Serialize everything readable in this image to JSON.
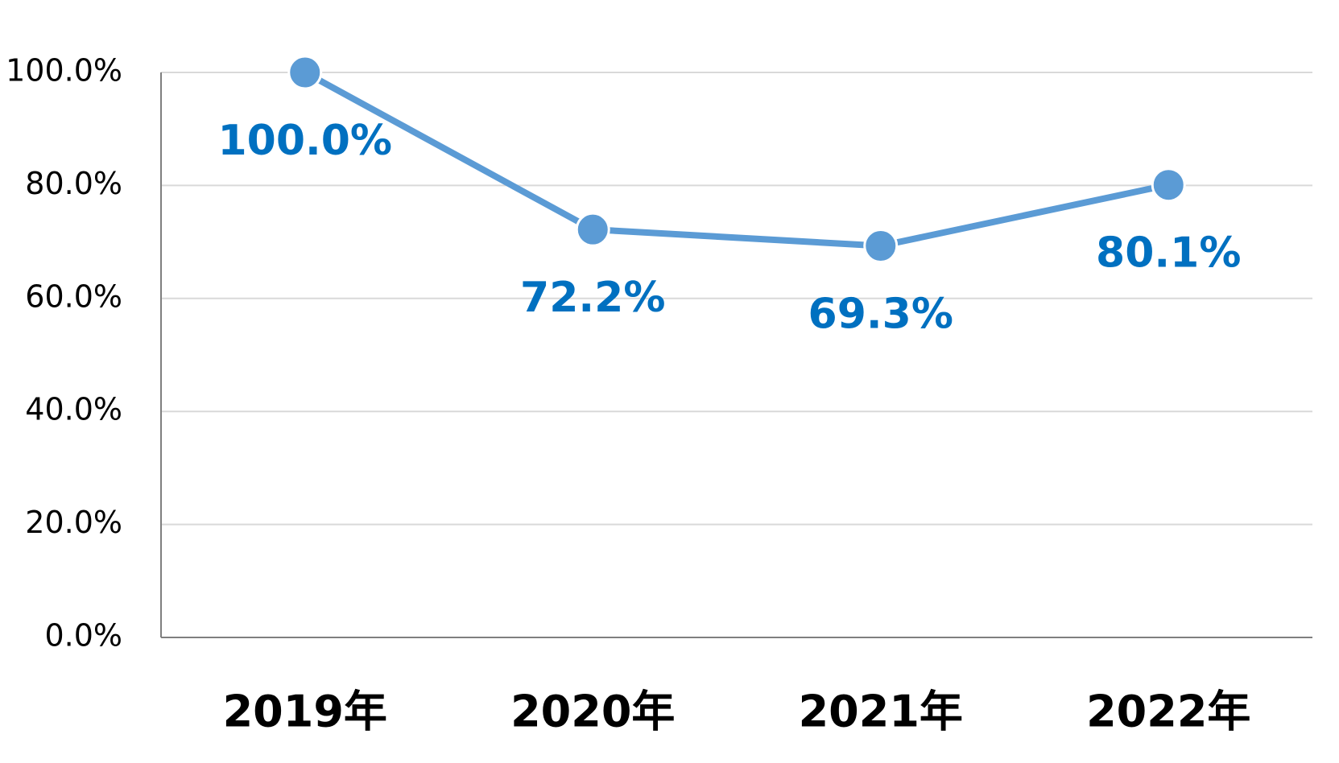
{
  "chart_data": {
    "type": "line",
    "categories": [
      "2019年",
      "2020年",
      "2021年",
      "2022年"
    ],
    "values": [
      100,
      72.2,
      69.3,
      80.1
    ],
    "value_labels": [
      "100.0%",
      "72.2%",
      "69.3%",
      "80.1%"
    ],
    "color": "#5b9bd5",
    "label_color": "#0070c0",
    "ylim": [
      0,
      100
    ],
    "yticks": [
      {
        "value": 0,
        "label": "0.0%"
      },
      {
        "value": 20,
        "label": "20.0%"
      },
      {
        "value": 40,
        "label": "40.0%"
      },
      {
        "value": 60,
        "label": "60.0%"
      },
      {
        "value": 80,
        "label": "80.0%"
      },
      {
        "value": 100,
        "label": "100.0%"
      }
    ],
    "grid": true
  }
}
